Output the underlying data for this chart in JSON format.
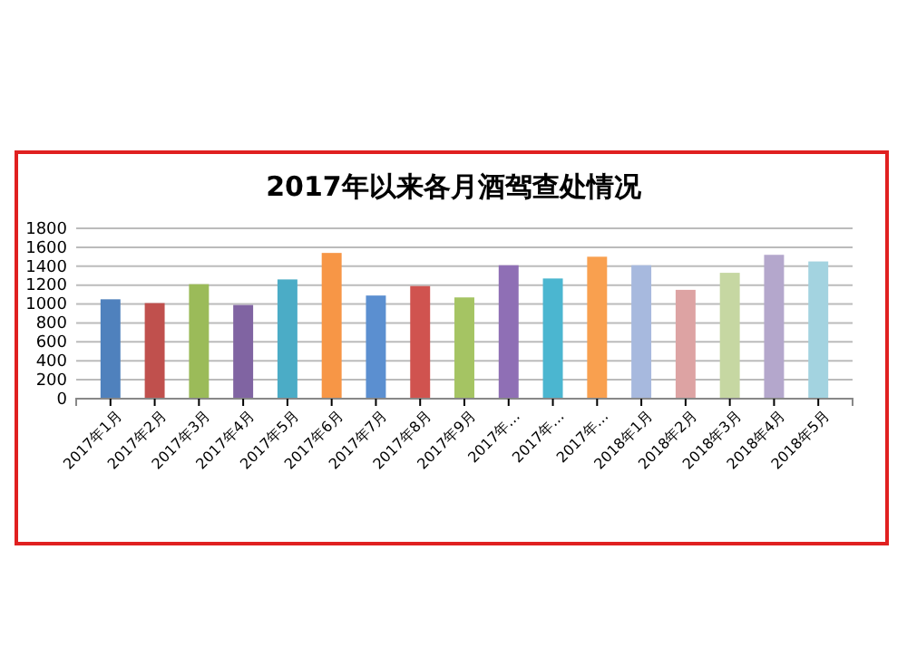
{
  "chart_data": {
    "type": "bar",
    "title": "2017年以来各月酒驾查处情况",
    "categories": [
      "2017年1月",
      "2017年2月",
      "2017年3月",
      "2017年4月",
      "2017年5月",
      "2017年6月",
      "2017年7月",
      "2017年8月",
      "2017年9月",
      "2017年…",
      "2017年…",
      "2017年…",
      "2018年1月",
      "2018年2月",
      "2018年3月",
      "2018年4月",
      "2018年5月"
    ],
    "values": [
      1050,
      1010,
      1210,
      990,
      1260,
      1540,
      1090,
      1190,
      1070,
      1410,
      1270,
      1500,
      1410,
      1150,
      1330,
      1520,
      1450
    ],
    "colors": [
      "#4f81bd",
      "#c0504d",
      "#9bbb59",
      "#8064a2",
      "#4bacc6",
      "#f79646",
      "#5b8fd0",
      "#d0534f",
      "#a5c463",
      "#8f6fb5",
      "#4bb6d0",
      "#f9a04f",
      "#a7b9de",
      "#dda3a3",
      "#c6d7a2",
      "#b4a7cc",
      "#a3d3e0"
    ],
    "ylim": [
      0,
      1800
    ],
    "yticks": [
      0,
      200,
      400,
      600,
      800,
      1000,
      1200,
      1400,
      1600,
      1800
    ],
    "grid": "y"
  }
}
